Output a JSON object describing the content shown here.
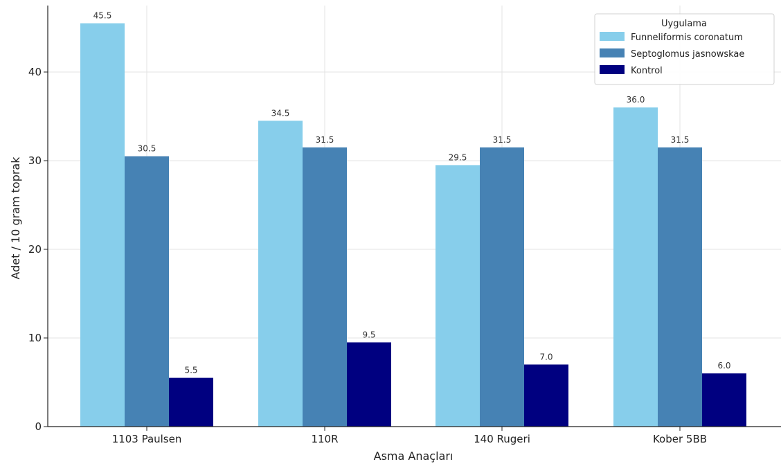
{
  "chart_data": {
    "type": "bar",
    "title": "",
    "xlabel": "Asma Anaçları",
    "ylabel": "Adet / 10 gram toprak",
    "categories": [
      "1103 Paulsen",
      "110R",
      "140 Rugeri",
      "Kober 5BB"
    ],
    "series": [
      {
        "name": "Funneliformis coronatum",
        "color": "#87CEEB",
        "values": [
          45.5,
          34.5,
          29.5,
          36.0
        ]
      },
      {
        "name": "Septoglomus jasnowskae",
        "color": "#4682B4",
        "values": [
          30.5,
          31.5,
          31.5,
          31.5
        ]
      },
      {
        "name": "Kontrol",
        "color": "#000080",
        "values": [
          5.5,
          9.5,
          7.0,
          6.0
        ]
      }
    ],
    "value_labels": [
      [
        "45.5",
        "34.5",
        "29.5",
        "36.0"
      ],
      [
        "30.5",
        "31.5",
        "31.5",
        "31.5"
      ],
      [
        "5.5",
        "9.5",
        "7.0",
        "6.0"
      ]
    ],
    "ylim": [
      0,
      47.5
    ],
    "yticks": [
      0,
      10,
      20,
      30,
      40
    ],
    "ytick_labels": [
      "0",
      "10",
      "20",
      "30",
      "40"
    ],
    "grid": true,
    "legend": {
      "title": "Uygulama",
      "placement": "top-right"
    }
  }
}
